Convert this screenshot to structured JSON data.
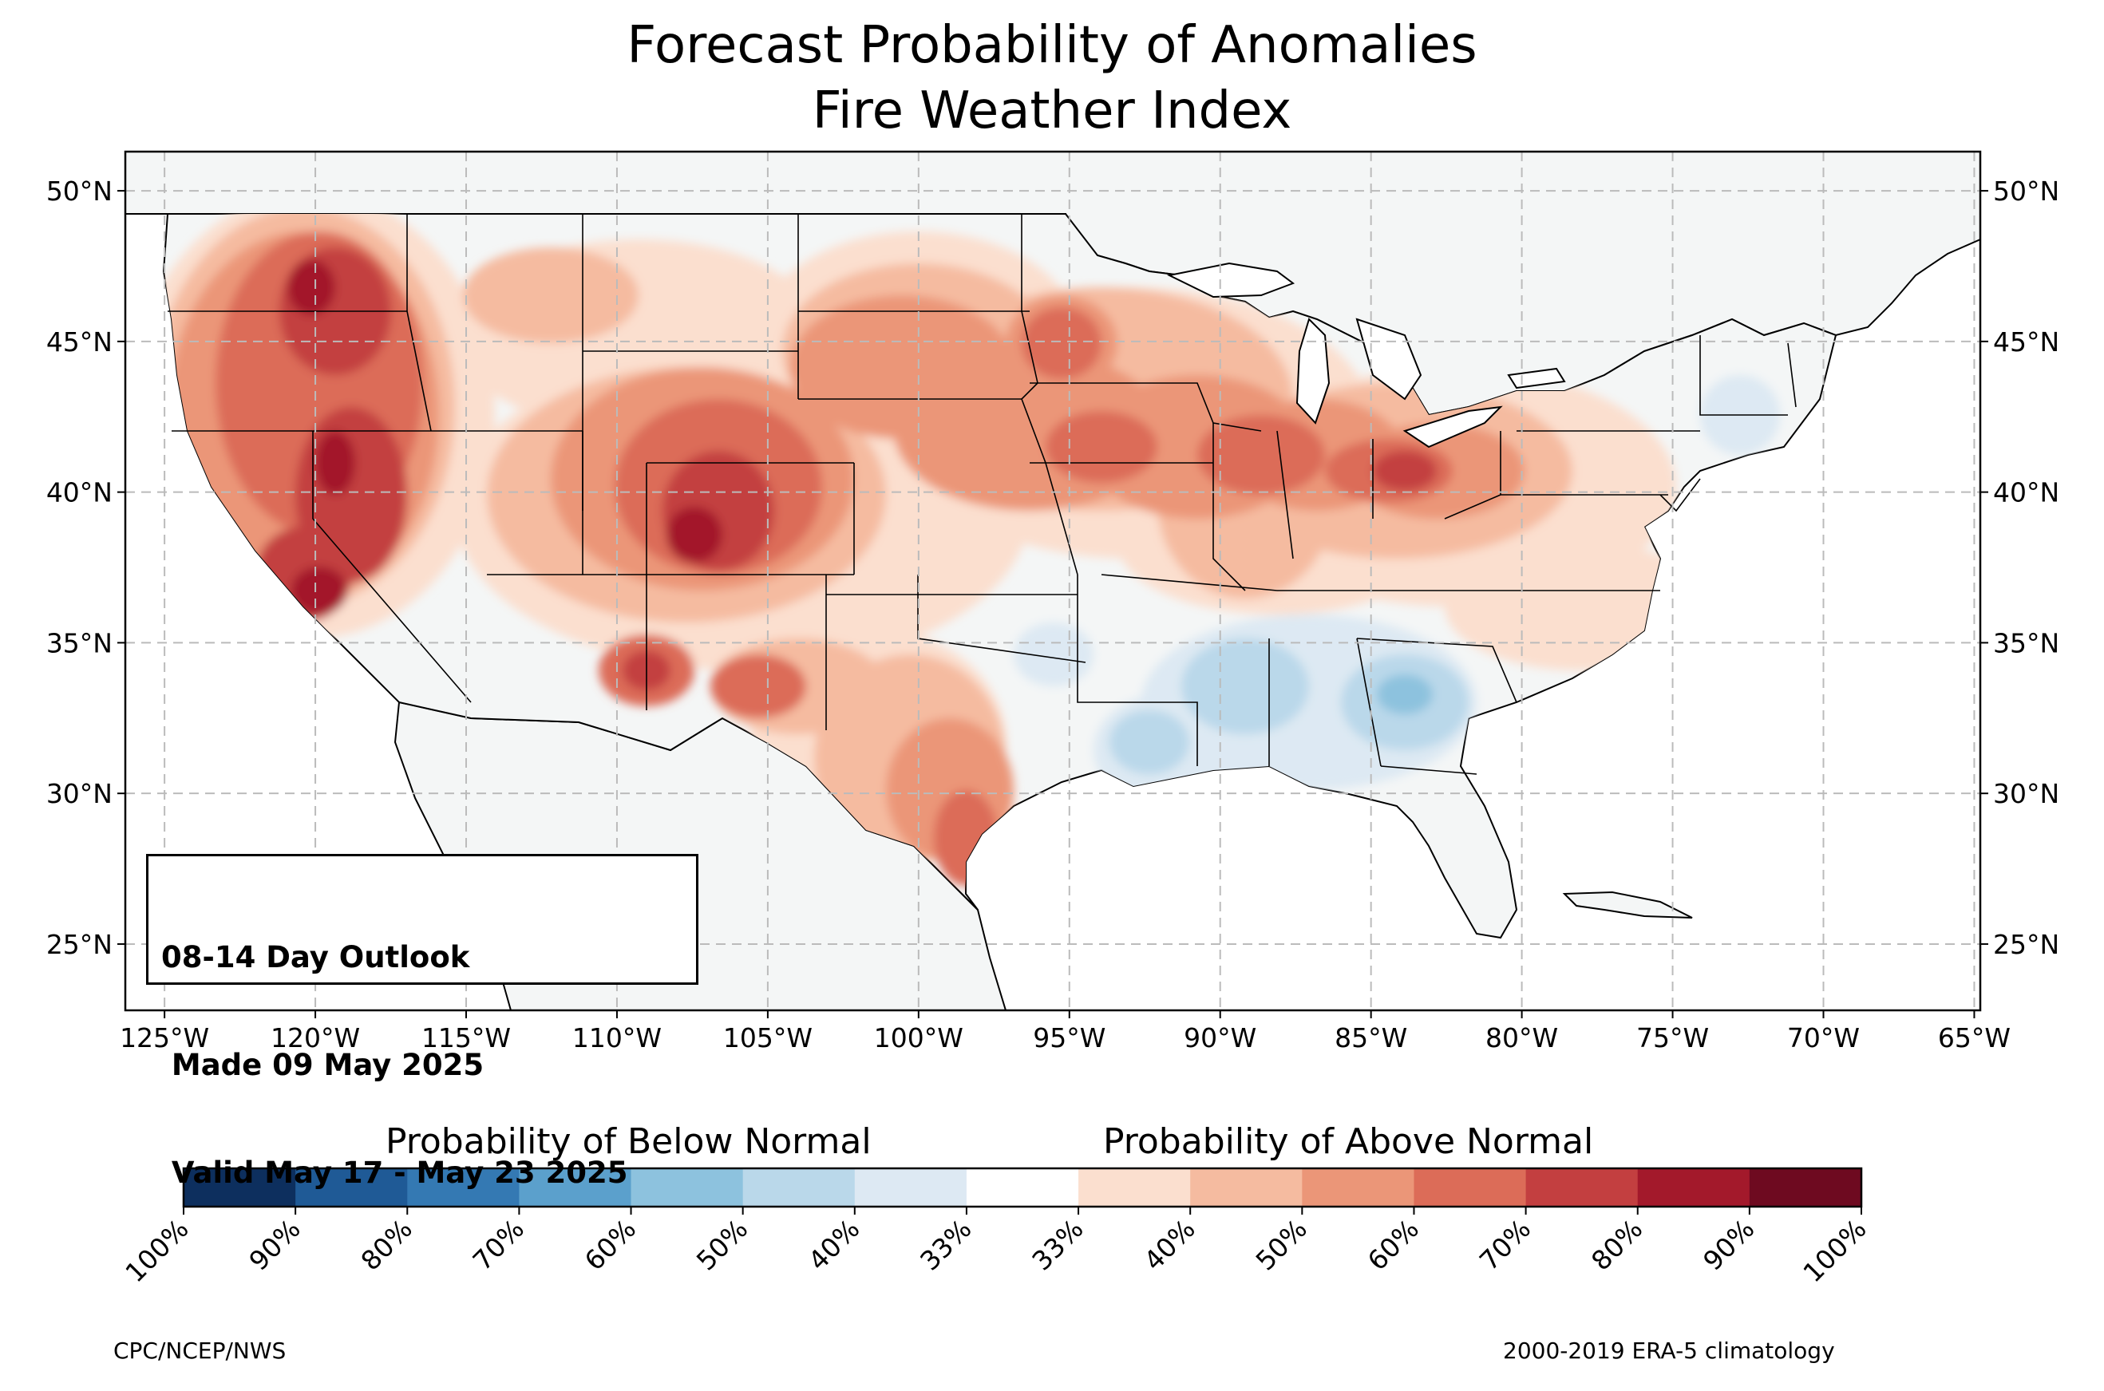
{
  "title": {
    "line1": "Forecast Probability of Anomalies",
    "line2": "Fire Weather Index"
  },
  "outlook_box": {
    "line1": "08-14 Day Outlook",
    "line2": " Made 09 May 2025",
    "line3": " Valid May 17 - May 23 2025"
  },
  "axes": {
    "longitude_ticks": [
      "125°W",
      "120°W",
      "115°W",
      "110°W",
      "105°W",
      "100°W",
      "95°W",
      "90°W",
      "85°W",
      "80°W",
      "75°W",
      "70°W",
      "65°W"
    ],
    "latitude_ticks": [
      "50°N",
      "45°N",
      "40°N",
      "35°N",
      "30°N",
      "25°N"
    ],
    "lon_range": [
      -126.3,
      -64.8
    ],
    "lat_range": [
      22.8,
      51.3
    ],
    "grid": true
  },
  "colorbar": {
    "below_label": "Probability of Below Normal",
    "above_label": "Probability of Above Normal",
    "tick_labels": [
      "100%",
      "90%",
      "80%",
      "70%",
      "60%",
      "50%",
      "40%",
      "33%",
      "33%",
      "40%",
      "50%",
      "60%",
      "70%",
      "80%",
      "90%",
      "100%"
    ],
    "colors": [
      "#0d2f5e",
      "#1f5a96",
      "#3479b3",
      "#5ba0cc",
      "#8dc2de",
      "#bad8ea",
      "#dde9f3",
      "#ffffff",
      "#fbdfcf",
      "#f5bba0",
      "#eb9678",
      "#dc6c58",
      "#c33f40",
      "#a3192b",
      "#6e0a20"
    ]
  },
  "background_colors": {
    "land": "#f4f6f6",
    "ocean": "#ffffff"
  },
  "footer": {
    "credit": "CPC/NCEP/NWS",
    "climatology": "2000-2019 ERA-5 climatology"
  }
}
